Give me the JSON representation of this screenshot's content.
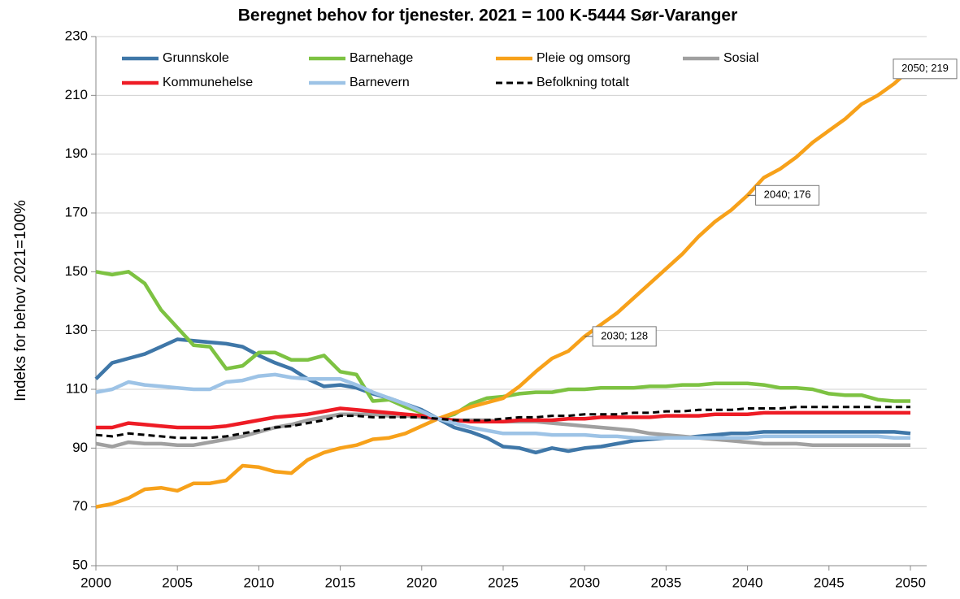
{
  "chart_data": {
    "type": "line",
    "title": "Beregnet behov for tjenester.  2021 = 100  K-5444 Sør-Varanger",
    "y_label": "Indeks for behov 2021=100%",
    "x": [
      2000,
      2001,
      2002,
      2003,
      2004,
      2005,
      2006,
      2007,
      2008,
      2009,
      2010,
      2011,
      2012,
      2013,
      2014,
      2015,
      2016,
      2017,
      2018,
      2019,
      2020,
      2021,
      2022,
      2023,
      2024,
      2025,
      2026,
      2027,
      2028,
      2029,
      2030,
      2031,
      2032,
      2033,
      2034,
      2035,
      2036,
      2037,
      2038,
      2039,
      2040,
      2041,
      2042,
      2043,
      2044,
      2045,
      2046,
      2047,
      2048,
      2049,
      2050
    ],
    "series": [
      {
        "name": "Grunnskole",
        "color": "#3f77a8",
        "values": [
          113.5,
          119,
          120.5,
          122,
          124.5,
          127,
          126.5,
          126,
          125.5,
          124.5,
          121.5,
          119,
          117,
          113.5,
          111,
          111.5,
          110.5,
          108.5,
          107,
          105,
          103,
          100,
          97,
          95.5,
          93.5,
          90.5,
          90,
          88.5,
          90,
          89,
          90,
          90.5,
          91.5,
          92.5,
          93,
          93.5,
          93.5,
          94,
          94.5,
          95,
          95,
          95.5,
          95.5,
          95.5,
          95.5,
          95.5,
          95.5,
          95.5,
          95.5,
          95.5,
          95
        ]
      },
      {
        "name": "Barnehage",
        "color": "#7dc242",
        "values": [
          150,
          149,
          150,
          146,
          137,
          131,
          125,
          124.5,
          117,
          118,
          122.5,
          122.5,
          120,
          120,
          121.5,
          116,
          115,
          106,
          106.5,
          104,
          102,
          100,
          101.5,
          105,
          107,
          107.5,
          108.5,
          109,
          109,
          110,
          110,
          110.5,
          110.5,
          110.5,
          111,
          111,
          111.5,
          111.5,
          112,
          112,
          112,
          111.5,
          110.5,
          110.5,
          110,
          108.5,
          108,
          108,
          106.5,
          106,
          106
        ]
      },
      {
        "name": "Pleie og omsorg",
        "color": "#f7a11a",
        "values": [
          70,
          71,
          73,
          76,
          76.5,
          75.5,
          78,
          78,
          79,
          84,
          83.5,
          82,
          81.5,
          86,
          88.5,
          90,
          91,
          93,
          93.5,
          95,
          97.5,
          100,
          102,
          104,
          105.5,
          107,
          111,
          116,
          120.5,
          123,
          128,
          132,
          136,
          141,
          146,
          151,
          156,
          162,
          167,
          171,
          176,
          182,
          185,
          189,
          194,
          198,
          202,
          207,
          210,
          214,
          219
        ]
      },
      {
        "name": "Sosial",
        "color": "#a0a0a0",
        "values": [
          91.5,
          90.5,
          92,
          91.5,
          91.5,
          91,
          91,
          92,
          93,
          94,
          95.5,
          97,
          98,
          99.5,
          100.5,
          101.5,
          101.5,
          101.5,
          101,
          101,
          100.5,
          100,
          99.5,
          99.5,
          99.5,
          99,
          99,
          99,
          98.5,
          98,
          97.5,
          97,
          96.5,
          96,
          95,
          94.5,
          94,
          93.5,
          93,
          92.5,
          92,
          91.5,
          91.5,
          91.5,
          91,
          91,
          91,
          91,
          91,
          91,
          91
        ]
      },
      {
        "name": "Kommunehelse",
        "color": "#ee1c25",
        "values": [
          97,
          97,
          98.5,
          98,
          97.5,
          97,
          97,
          97,
          97.5,
          98.5,
          99.5,
          100.5,
          101,
          101.5,
          102.5,
          103.5,
          103,
          102.5,
          102,
          101.5,
          101,
          100,
          99.5,
          99,
          99,
          99,
          99.5,
          99.5,
          99.5,
          100,
          100,
          100.5,
          100.5,
          100.5,
          100.5,
          101,
          101,
          101,
          101.5,
          101.5,
          101.5,
          102,
          102,
          102,
          102,
          102,
          102,
          102,
          102,
          102,
          102
        ]
      },
      {
        "name": "Barnevern",
        "color": "#9dc3e6",
        "values": [
          109,
          110,
          112.5,
          111.5,
          111,
          110.5,
          110,
          110,
          112.5,
          113,
          114.5,
          115,
          114,
          113.5,
          113.5,
          113.5,
          111.5,
          109,
          107,
          105,
          102.5,
          100,
          98.5,
          97,
          96,
          95,
          95,
          95,
          94.5,
          94.5,
          94.5,
          94,
          94,
          93.5,
          93.5,
          93.5,
          93.5,
          93.5,
          93.5,
          93.5,
          93.5,
          94,
          94,
          94,
          94,
          94,
          94,
          94,
          94,
          93.5,
          93.5
        ]
      },
      {
        "name": "Befolkning totalt",
        "color": "#000000",
        "style": "dashed",
        "values": [
          94.5,
          94,
          95,
          94.5,
          94,
          93.5,
          93.5,
          93.5,
          94,
          95,
          96,
          97,
          97.5,
          98.5,
          99.5,
          101,
          101,
          100.5,
          100.5,
          100.5,
          100.5,
          100,
          99.5,
          99.5,
          99.5,
          100,
          100.5,
          100.5,
          101,
          101,
          101.5,
          101.5,
          101.5,
          102,
          102,
          102.5,
          102.5,
          103,
          103,
          103,
          103.5,
          103.5,
          103.5,
          104,
          104,
          104,
          104,
          104,
          104,
          104,
          104
        ]
      }
    ],
    "annotations": [
      {
        "text": "2030; 128",
        "x": 2030,
        "y": 128
      },
      {
        "text": "2040; 176",
        "x": 2040,
        "y": 176
      },
      {
        "text": "2050; 219",
        "x": 2050,
        "y": 219
      }
    ],
    "xlim": [
      2000,
      2050
    ],
    "xticks": [
      2000,
      2005,
      2010,
      2015,
      2020,
      2025,
      2030,
      2035,
      2040,
      2045,
      2050
    ],
    "ylim": [
      50,
      230
    ],
    "yticks": [
      50,
      70,
      90,
      110,
      130,
      150,
      170,
      190,
      210,
      230
    ],
    "grid": true,
    "legend": "top"
  }
}
